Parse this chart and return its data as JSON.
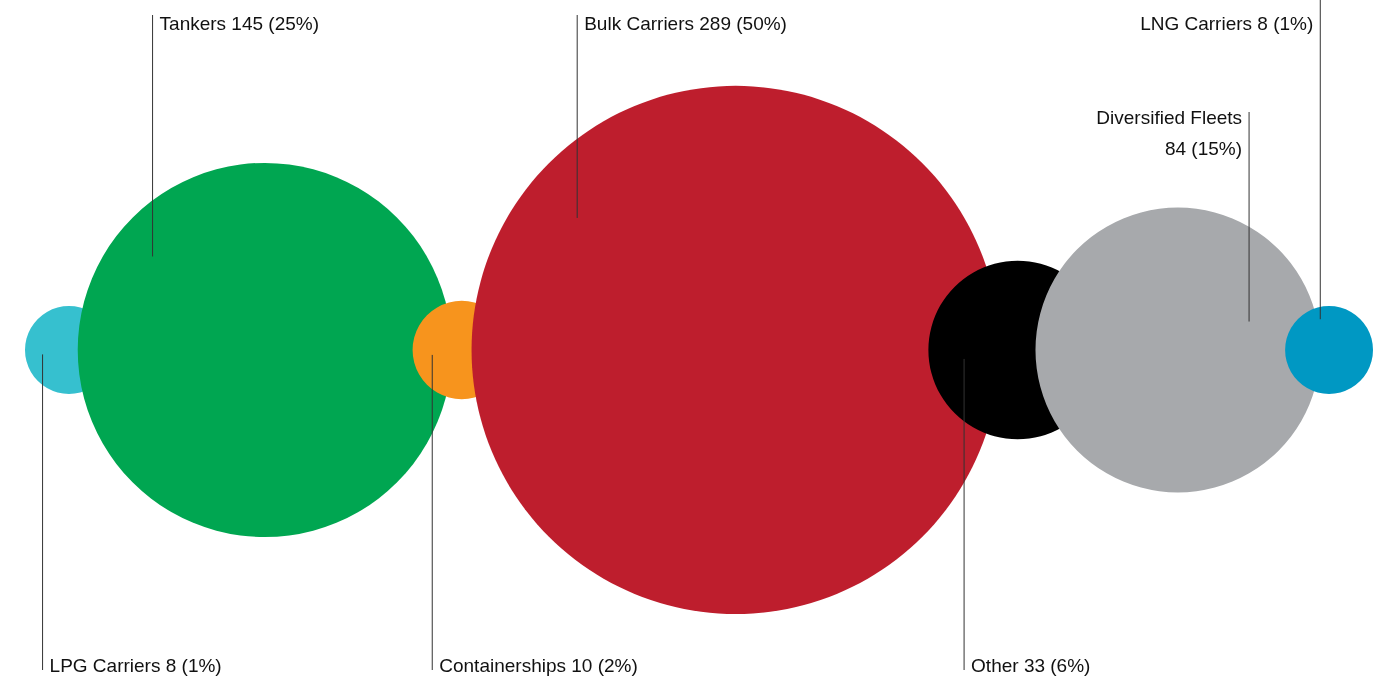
{
  "chart_data": {
    "type": "other",
    "categories": [
      "LPG Carriers",
      "Tankers",
      "Containerships",
      "Bulk Carriers",
      "Other",
      "Diversified Fleets",
      "LNG Carriers"
    ],
    "values": [
      8,
      145,
      10,
      289,
      33,
      84,
      8
    ],
    "value_labels": [
      "8 (1%)",
      "145 (25%)",
      "10 (2%)",
      "289 (50%)",
      "33 (6%)",
      "84 (15%)",
      "8 (1%)"
    ],
    "colors": [
      "#36c0cf",
      "#00a651",
      "#f7941d",
      "#be1e2d",
      "#000000",
      "#a7a9ac",
      "#0098c3"
    ]
  }
}
